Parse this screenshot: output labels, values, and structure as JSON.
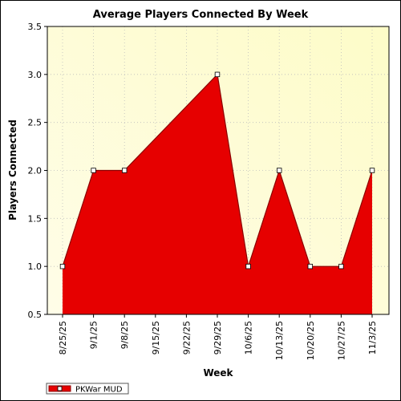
{
  "chart_data": {
    "type": "area",
    "title": "Average Players Connected By Week",
    "xlabel": "Week",
    "ylabel": "Players Connected",
    "categories": [
      "8/25/25",
      "9/1/25",
      "9/8/25",
      "9/15/25",
      "9/22/25",
      "9/29/25",
      "10/6/25",
      "10/13/25",
      "10/20/25",
      "10/27/25",
      "11/3/25"
    ],
    "y_ticks": [
      "0.5",
      "1.0",
      "1.5",
      "2.0",
      "2.5",
      "3.0",
      "3.5"
    ],
    "ylim": [
      0.5,
      3.5
    ],
    "grid": true,
    "legend_position": "bottom-left",
    "series": [
      {
        "name": "PKWar MUD",
        "points": [
          {
            "x": "8/25/25",
            "y": 1.0
          },
          {
            "x": "9/1/25",
            "y": 2.0
          },
          {
            "x": "9/8/25",
            "y": 2.0
          },
          {
            "x": "9/29/25",
            "y": 3.0
          },
          {
            "x": "10/6/25",
            "y": 1.0
          },
          {
            "x": "10/13/25",
            "y": 2.0
          },
          {
            "x": "10/20/25",
            "y": 1.0
          },
          {
            "x": "10/27/25",
            "y": 1.0
          },
          {
            "x": "11/3/25",
            "y": 2.0
          }
        ],
        "color": "#e60000",
        "line_color": "#8b0000"
      }
    ],
    "plot_background_colors": [
      "#fffde8",
      "#fdfcc8"
    ]
  }
}
